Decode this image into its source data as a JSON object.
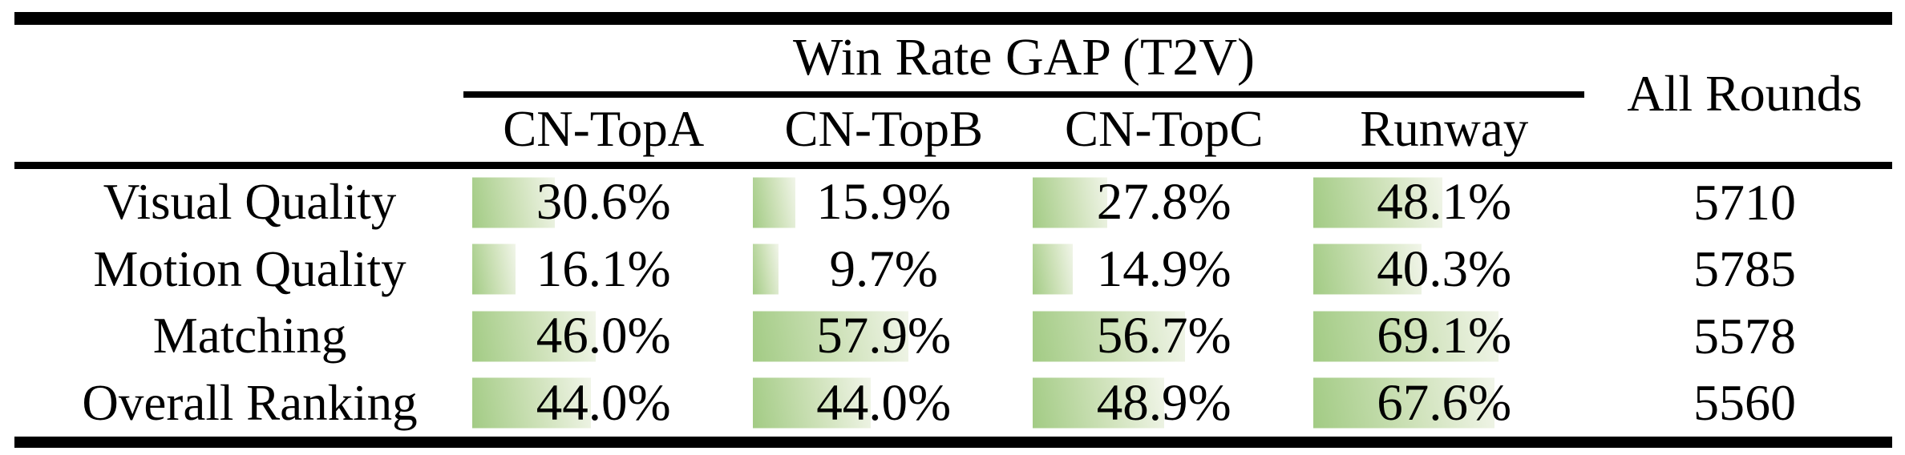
{
  "colors": {
    "bar_green": "#a2cb84",
    "bar_fade": "#f1f5e9",
    "rule_black": "#000000",
    "background": "#ffffff"
  },
  "table": {
    "group_header": "Win Rate GAP (T2V)",
    "all_rounds_header": "All Rounds",
    "columns": [
      "CN-TopA",
      "CN-TopB",
      "CN-TopC",
      "Runway"
    ],
    "rows": [
      {
        "label": "Visual Quality",
        "cells": [
          {
            "text": "30.6%",
            "pct": 30.6
          },
          {
            "text": "15.9%",
            "pct": 15.9
          },
          {
            "text": "27.8%",
            "pct": 27.8
          },
          {
            "text": "48.1%",
            "pct": 48.1
          }
        ],
        "all_rounds": "5710"
      },
      {
        "label": "Motion Quality",
        "cells": [
          {
            "text": "16.1%",
            "pct": 16.1
          },
          {
            "text": "9.7%",
            "pct": 9.7
          },
          {
            "text": "14.9%",
            "pct": 14.9
          },
          {
            "text": "40.3%",
            "pct": 40.3
          }
        ],
        "all_rounds": "5785"
      },
      {
        "label": "Matching",
        "cells": [
          {
            "text": "46.0%",
            "pct": 46.0
          },
          {
            "text": "57.9%",
            "pct": 57.9
          },
          {
            "text": "56.7%",
            "pct": 56.7
          },
          {
            "text": "69.1%",
            "pct": 69.1
          }
        ],
        "all_rounds": "5578"
      },
      {
        "label": "Overall Ranking",
        "cells": [
          {
            "text": "44.0%",
            "pct": 44.0
          },
          {
            "text": "44.0%",
            "pct": 44.0
          },
          {
            "text": "48.9%",
            "pct": 48.9
          },
          {
            "text": "67.6%",
            "pct": 67.6
          }
        ],
        "all_rounds": "5560"
      }
    ]
  },
  "chart_data": {
    "type": "table",
    "title": "Win Rate GAP (T2V)",
    "columns": [
      "CN-TopA",
      "CN-TopB",
      "CN-TopC",
      "Runway",
      "All Rounds"
    ],
    "row_headers": [
      "Visual Quality",
      "Motion Quality",
      "Matching",
      "Overall Ranking"
    ],
    "win_rate_gap_percent": [
      [
        30.6,
        15.9,
        27.8,
        48.1
      ],
      [
        16.1,
        9.7,
        14.9,
        40.3
      ],
      [
        46.0,
        57.9,
        56.7,
        69.1
      ],
      [
        44.0,
        44.0,
        48.9,
        67.6
      ]
    ],
    "all_rounds": [
      5710,
      5785,
      5578,
      5560
    ],
    "bar_scale_percent_range": [
      0,
      100
    ]
  }
}
